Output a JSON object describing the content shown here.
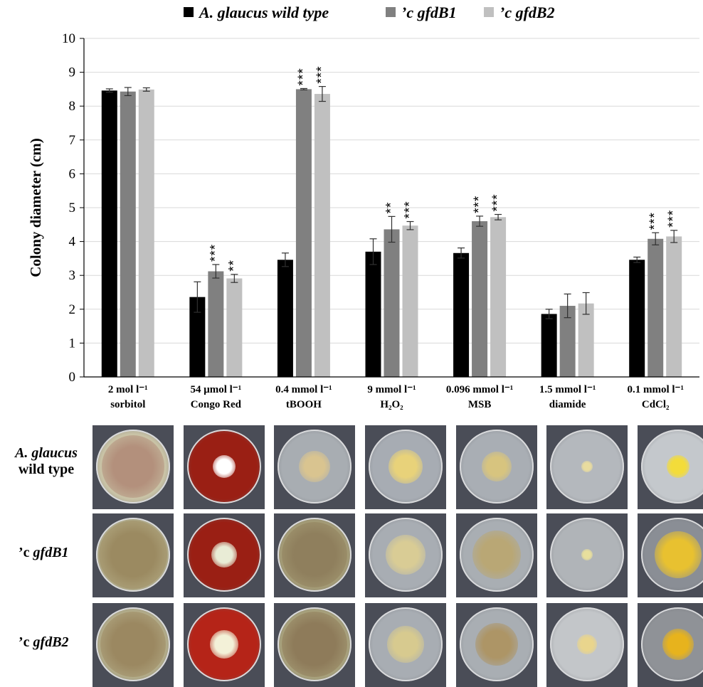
{
  "chart_data": {
    "type": "bar",
    "categories": [
      [
        "2 mol l⁻¹",
        "sorbitol"
      ],
      [
        "54 μmol l⁻¹",
        "Congo Red"
      ],
      [
        "0.4 mmol l⁻¹",
        "tBOOH"
      ],
      [
        "9 mmol l⁻¹",
        "H₂O₂"
      ],
      [
        "0.096 mmol l⁻¹",
        "MSB"
      ],
      [
        "1.5 mmol l⁻¹",
        "diamide"
      ],
      [
        "0.1 mmol l⁻¹",
        "CdCl₂"
      ]
    ],
    "series": [
      {
        "name": "A. glaucus wild type",
        "color": "#000000",
        "values": [
          8.46,
          2.36,
          3.46,
          3.7,
          3.66,
          1.86,
          3.46
        ],
        "errors": [
          0.05,
          0.45,
          0.2,
          0.38,
          0.15,
          0.14,
          0.08
        ],
        "stars": [
          "",
          "",
          "",
          "",
          "",
          "",
          ""
        ]
      },
      {
        "name": "’c gfdB1",
        "color": "#808080",
        "values": [
          8.43,
          3.12,
          8.5,
          4.36,
          4.6,
          2.1,
          4.08
        ],
        "errors": [
          0.12,
          0.2,
          0.02,
          0.38,
          0.15,
          0.35,
          0.18
        ],
        "stars": [
          "",
          "***",
          "***",
          "**",
          "***",
          "",
          "***"
        ]
      },
      {
        "name": "’c gfdB2",
        "color": "#c0c0c0",
        "values": [
          8.49,
          2.91,
          8.36,
          4.47,
          4.72,
          2.17,
          4.15
        ],
        "errors": [
          0.05,
          0.12,
          0.22,
          0.12,
          0.08,
          0.32,
          0.18
        ],
        "stars": [
          "",
          "**",
          "***",
          "***",
          "***",
          "",
          "***"
        ]
      }
    ],
    "ylabel": "Colony diameter (cm)",
    "ylim": [
      0,
      10
    ],
    "yticks": [
      0,
      1,
      2,
      3,
      4,
      5,
      6,
      7,
      8,
      9,
      10
    ],
    "grid": true,
    "legend": "top"
  },
  "plate_rows": [
    {
      "label_line1": "A. glaucus",
      "label_line2": "wild type"
    },
    {
      "label_prefix": "’c ",
      "label_gene": "gfdB1"
    },
    {
      "label_prefix": "’c ",
      "label_gene": "gfdB2"
    }
  ]
}
